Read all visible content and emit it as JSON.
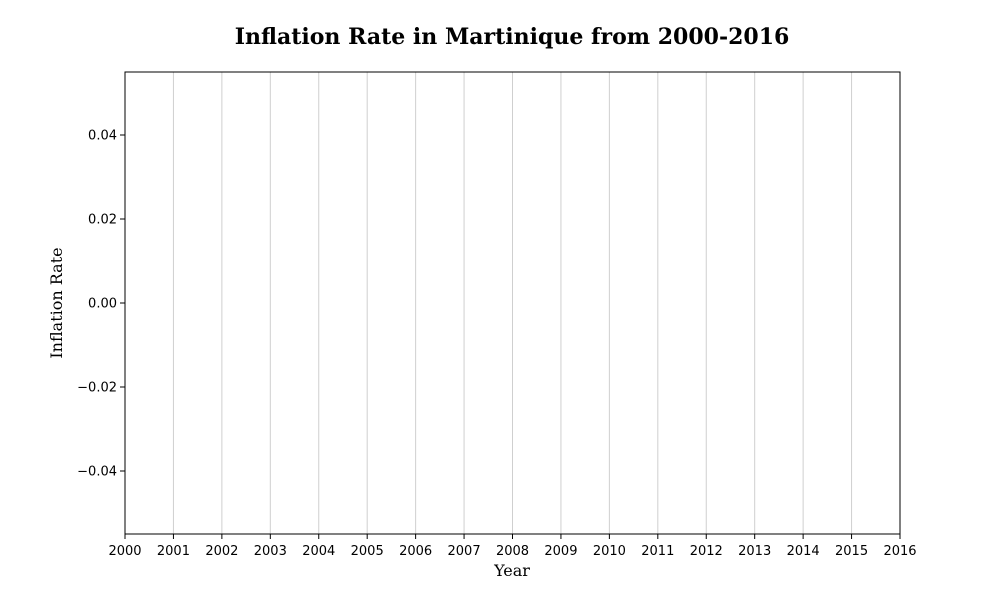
{
  "chart_data": {
    "type": "line",
    "title": "Inflation Rate in Martinique from 2000-2016",
    "xlabel": "Year",
    "ylabel": "Inflation Rate",
    "x": [
      2000,
      2001,
      2002,
      2003,
      2004,
      2005,
      2006,
      2007,
      2008,
      2009,
      2010,
      2011,
      2012,
      2013,
      2014,
      2015,
      2016
    ],
    "x_tick_labels": [
      "2000",
      "2001",
      "2002",
      "2003",
      "2004",
      "2005",
      "2006",
      "2007",
      "2008",
      "2009",
      "2010",
      "2011",
      "2012",
      "2013",
      "2014",
      "2015",
      "2016"
    ],
    "y_ticks": [
      0.04,
      0.02,
      0.0,
      -0.02,
      -0.04
    ],
    "y_tick_labels": [
      "0.04",
      "0.02",
      "0.00",
      "−0.02",
      "−0.04"
    ],
    "xlim": [
      2000,
      2016
    ],
    "ylim": [
      -0.055,
      0.055
    ],
    "grid": "vertical",
    "series": []
  }
}
